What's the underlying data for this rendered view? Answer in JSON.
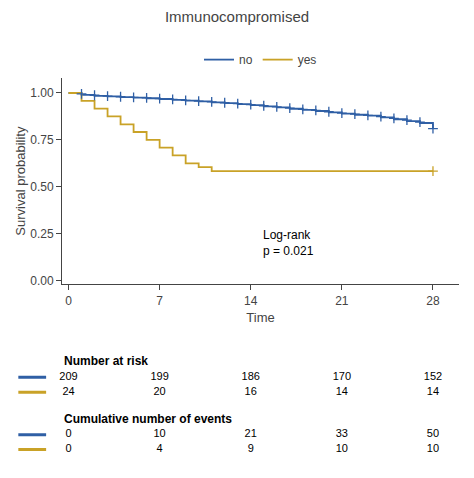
{
  "chart_data": {
    "type": "step",
    "title": "Immunocompromised",
    "xlabel": "Time",
    "ylabel": "Survival probability",
    "xlim": [
      -0.5,
      30
    ],
    "ylim": [
      -0.02,
      1.08
    ],
    "xticks": [
      0,
      7,
      14,
      21,
      28
    ],
    "yticks": [
      {
        "value": 0.0,
        "label": "0.00"
      },
      0.25,
      {
        "value": 0.5,
        "label": "0.50"
      },
      0.75,
      {
        "value": 1.0,
        "label": "1.00"
      }
    ],
    "grid": false,
    "annotation": "Log-rank\np = 0.021",
    "series": [
      {
        "name": "no",
        "color": "#2f5fa5",
        "x": [
          0,
          0.5,
          1,
          1.5,
          2,
          2.5,
          3,
          3.5,
          4,
          4.5,
          5,
          5.5,
          6,
          6.5,
          7,
          7.5,
          8,
          8.5,
          9,
          9.5,
          10,
          10.5,
          11,
          11.5,
          12,
          12.5,
          13,
          13.5,
          14,
          14.5,
          15,
          15.5,
          16,
          16.5,
          17,
          17.5,
          18,
          18.5,
          19,
          19.5,
          20,
          20.5,
          21,
          21.5,
          22,
          22.5,
          23,
          23.5,
          24,
          24.5,
          25,
          25.5,
          26,
          26.5,
          27,
          27.5,
          28
        ],
        "values": [
          1.0,
          1.0,
          0.99,
          0.99,
          0.985,
          0.985,
          0.982,
          0.982,
          0.978,
          0.978,
          0.975,
          0.975,
          0.972,
          0.972,
          0.968,
          0.968,
          0.963,
          0.963,
          0.959,
          0.959,
          0.955,
          0.955,
          0.95,
          0.95,
          0.946,
          0.946,
          0.941,
          0.941,
          0.935,
          0.935,
          0.929,
          0.929,
          0.923,
          0.923,
          0.916,
          0.916,
          0.91,
          0.91,
          0.904,
          0.904,
          0.897,
          0.897,
          0.89,
          0.89,
          0.884,
          0.884,
          0.879,
          0.879,
          0.87,
          0.87,
          0.86,
          0.86,
          0.85,
          0.85,
          0.84,
          0.84,
          0.81
        ],
        "censoring_x": [
          1,
          2,
          3,
          4,
          5,
          6,
          7,
          8,
          9,
          10,
          11,
          12,
          13,
          14,
          15,
          16,
          17,
          18,
          19,
          20,
          21,
          22,
          23,
          24,
          25,
          26,
          27,
          28
        ],
        "censoring_values": [
          0.995,
          0.988,
          0.983,
          0.98,
          0.977,
          0.974,
          0.97,
          0.966,
          0.961,
          0.957,
          0.953,
          0.948,
          0.943,
          0.938,
          0.932,
          0.926,
          0.919,
          0.913,
          0.907,
          0.9,
          0.893,
          0.887,
          0.881,
          0.874,
          0.865,
          0.855,
          0.845,
          0.81
        ]
      },
      {
        "name": "yes",
        "color": "#c9a227",
        "x": [
          0,
          1,
          1,
          2,
          2,
          3,
          3,
          4,
          4,
          5,
          5,
          6,
          6,
          7,
          7,
          8,
          8,
          9,
          9,
          10,
          10,
          11,
          11,
          12,
          12,
          13,
          13,
          14,
          14,
          28
        ],
        "values": [
          1.0,
          1.0,
          0.958,
          0.958,
          0.917,
          0.917,
          0.875,
          0.875,
          0.833,
          0.833,
          0.792,
          0.792,
          0.75,
          0.75,
          0.708,
          0.708,
          0.667,
          0.667,
          0.625,
          0.625,
          0.604,
          0.604,
          0.583,
          0.583,
          0.583,
          0.583,
          0.583,
          0.583,
          0.583,
          0.583
        ],
        "censoring_x": [
          28
        ],
        "censoring_values": [
          0.583
        ]
      }
    ],
    "risk_table": {
      "times": [
        0,
        7,
        14,
        21,
        28
      ],
      "sections": [
        {
          "header": "Number at risk",
          "rows": [
            [
              209,
              199,
              186,
              170,
              152
            ],
            [
              24,
              20,
              16,
              14,
              14
            ]
          ]
        },
        {
          "header": "Cumulative number of events",
          "rows": [
            [
              0,
              10,
              21,
              33,
              50
            ],
            [
              0,
              4,
              9,
              10,
              10
            ]
          ]
        }
      ]
    }
  }
}
